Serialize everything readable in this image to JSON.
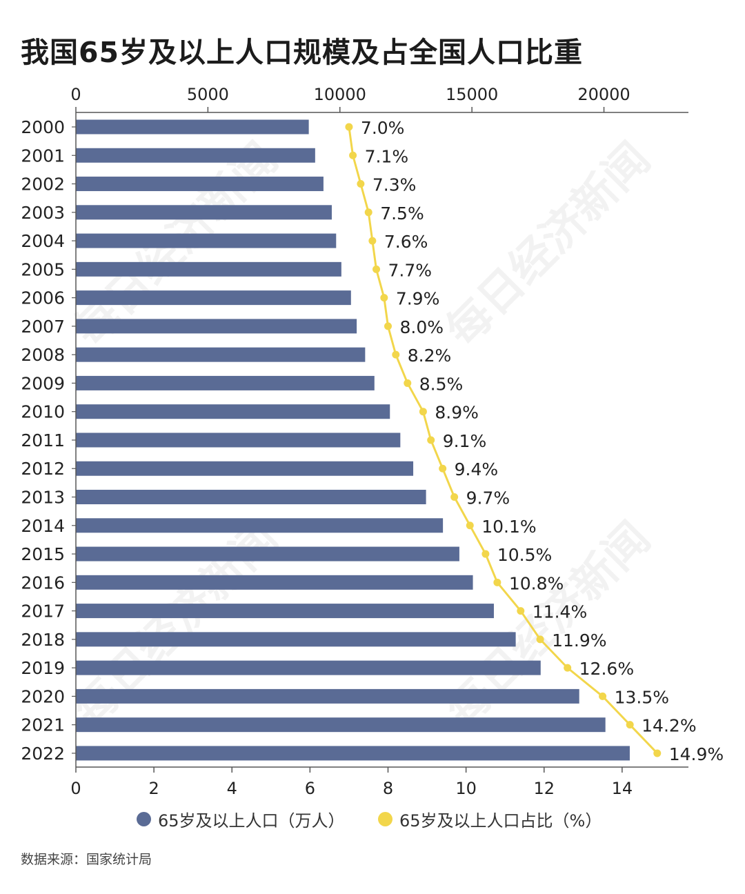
{
  "title": "我国65岁及以上人口规模及占全国人口比重",
  "source": "数据来源：国家统计局",
  "watermark": "每日经济新闻",
  "legend": {
    "population": "65岁及以上人口（万人）",
    "share": "65岁及以上人口占比（%）"
  },
  "colors": {
    "bar": "#5a6b95",
    "line": "#f2d64b",
    "axis": "#555555",
    "text": "#222222"
  },
  "chart_data": {
    "type": "bar",
    "orientation": "horizontal",
    "categories": [
      "2000",
      "2001",
      "2002",
      "2003",
      "2004",
      "2005",
      "2006",
      "2007",
      "2008",
      "2009",
      "2010",
      "2011",
      "2012",
      "2013",
      "2014",
      "2015",
      "2016",
      "2017",
      "2018",
      "2019",
      "2020",
      "2021",
      "2022"
    ],
    "series": [
      {
        "name": "65岁及以上人口（万人）",
        "type": "bar",
        "axis": "top",
        "values": [
          8821,
          9062,
          9377,
          9692,
          9857,
          10055,
          10419,
          10636,
          10956,
          11307,
          11894,
          12288,
          12777,
          13262,
          13902,
          14524,
          15037,
          15831,
          16658,
          17603,
          19064,
          20056,
          20978
        ]
      },
      {
        "name": "65岁及以上人口占比（%）",
        "type": "line",
        "axis": "bottom",
        "values": [
          7.0,
          7.1,
          7.3,
          7.5,
          7.6,
          7.7,
          7.9,
          8.0,
          8.2,
          8.5,
          8.9,
          9.1,
          9.4,
          9.7,
          10.1,
          10.5,
          10.8,
          11.4,
          11.9,
          12.6,
          13.5,
          14.2,
          14.9
        ],
        "labels": [
          "7.0%",
          "7.1%",
          "7.3%",
          "7.5%",
          "7.6%",
          "7.7%",
          "7.9%",
          "8.0%",
          "8.2%",
          "8.5%",
          "8.9%",
          "9.1%",
          "9.4%",
          "9.7%",
          "10.1%",
          "10.5%",
          "10.8%",
          "11.4%",
          "11.9%",
          "12.6%",
          "13.5%",
          "14.2%",
          "14.9%"
        ]
      }
    ],
    "top_axis": {
      "ticks": [
        0,
        5000,
        10000,
        15000,
        20000
      ],
      "range": [
        0,
        23200
      ]
    },
    "bottom_axis": {
      "ticks": [
        0,
        2,
        4,
        6,
        8,
        10,
        12,
        14
      ],
      "range": [
        0,
        15.7
      ]
    },
    "grid": false,
    "legend_position": "bottom"
  }
}
